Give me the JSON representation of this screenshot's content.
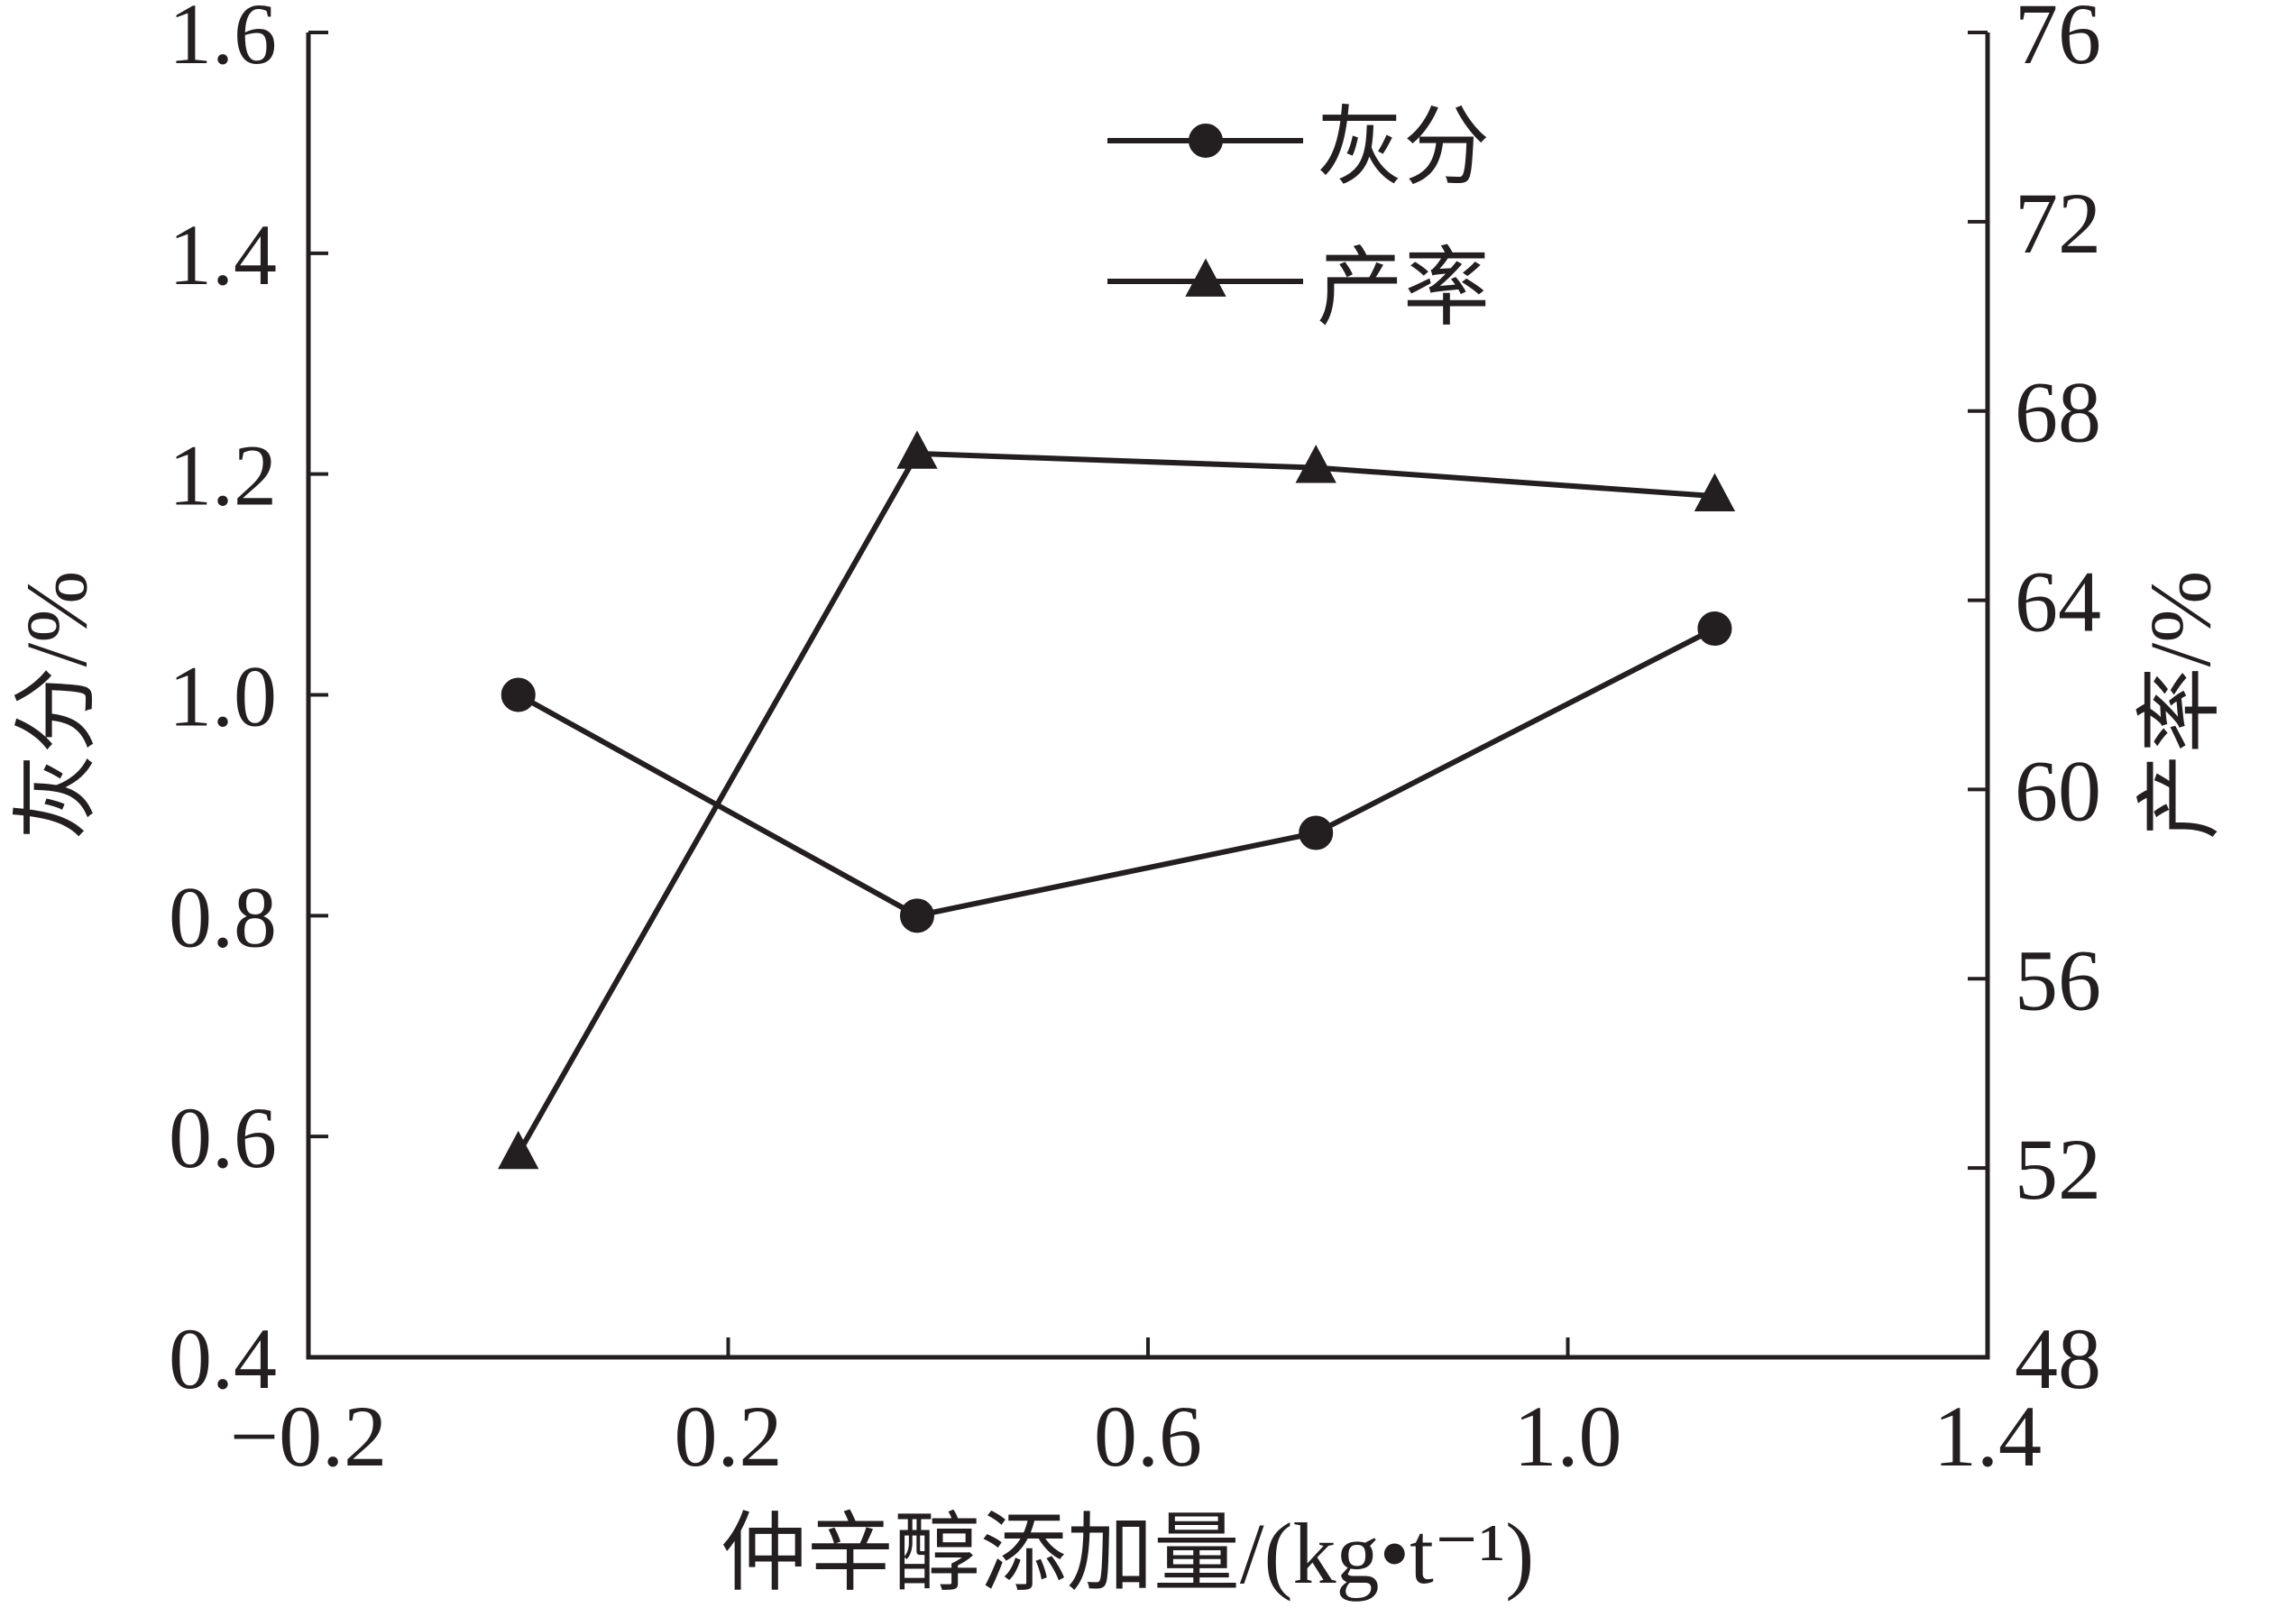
{
  "chart_data": {
    "type": "line",
    "x": [
      0.0,
      0.38,
      0.76,
      1.14
    ],
    "xlabel": "仲辛醇添加量/(kg•t⁻¹)",
    "xlim": [
      -0.2,
      1.4
    ],
    "xticks": [
      -0.2,
      0.2,
      0.6,
      1.0,
      1.4
    ],
    "xtick_labels": [
      "−0.2",
      "0.2",
      "0.6",
      "1.0",
      "1.4"
    ],
    "y_left": {
      "label": "灰分/%",
      "lim": [
        0.4,
        1.6
      ],
      "ticks": [
        0.4,
        0.6,
        0.8,
        1.0,
        1.2,
        1.4,
        1.6
      ],
      "tick_labels": [
        "0.4",
        "0.6",
        "0.8",
        "1.0",
        "1.2",
        "1.4",
        "1.6"
      ]
    },
    "y_right": {
      "label": "产率/%",
      "lim": [
        48,
        76
      ],
      "ticks": [
        48,
        52,
        56,
        60,
        64,
        68,
        72,
        76
      ],
      "tick_labels": [
        "48",
        "52",
        "56",
        "60",
        "64",
        "68",
        "72",
        "76"
      ]
    },
    "series": [
      {
        "name": "灰分",
        "axis": "left",
        "marker": "circle",
        "values": [
          1.0,
          0.8,
          0.875,
          1.06
        ]
      },
      {
        "name": "产率",
        "axis": "right",
        "marker": "triangle",
        "values": [
          52.3,
          67.1,
          66.8,
          66.2
        ]
      }
    ],
    "legend_position": "top-center",
    "grid": false,
    "colors": {
      "line": "#231f20",
      "background": "#ffffff"
    }
  }
}
